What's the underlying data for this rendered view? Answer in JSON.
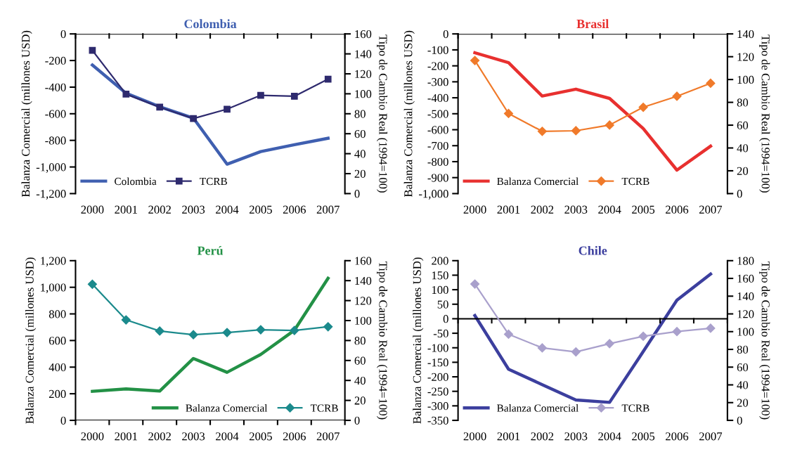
{
  "chart_data": [
    {
      "type": "line",
      "title": "Colombia",
      "categories": [
        "2000",
        "2001",
        "2002",
        "2003",
        "2004",
        "2005",
        "2006",
        "2007"
      ],
      "ylabel": "Balanza Comercial (millones USD)",
      "y2label": "Tipo de Cambio Real (1994=100)",
      "ylim": [
        -1200,
        0
      ],
      "yticks": [
        {
          "value": -1200,
          "label": "-1,200"
        },
        {
          "value": -1000,
          "label": "-1,000"
        },
        -800,
        -600,
        -400,
        -200,
        0
      ],
      "y2lim": [
        0,
        160
      ],
      "y2ticks": [
        0,
        20,
        40,
        60,
        80,
        100,
        120,
        140,
        160
      ],
      "legend": "bottom left",
      "grid": false,
      "series": [
        {
          "name": "Colombia",
          "color": "#3f5fb0",
          "marker": "none",
          "values": [
            -234,
            -446,
            -547,
            -633,
            -979,
            -884,
            -833,
            -784
          ]
        },
        {
          "name": "TCRB",
          "color": "#2e2a6e",
          "marker": "square",
          "axis": "y2",
          "values": [
            143.5,
            99.7,
            86.6,
            75.2,
            84.6,
            98.5,
            97.5,
            114.7
          ]
        }
      ]
    },
    {
      "type": "line",
      "title": "Brasil",
      "categories": [
        "2000",
        "2001",
        "2002",
        "2003",
        "2004",
        "2005",
        "2006",
        "2007"
      ],
      "ylabel": "Balanza Comercial (millones USD)",
      "y2label": "Tipo de Cambio Real (1994=100)",
      "ylim": [
        -1000,
        0
      ],
      "yticks": [
        {
          "value": -1000,
          "label": "-1,000"
        },
        -900,
        -800,
        -700,
        -600,
        -500,
        -400,
        -300,
        -200,
        -100,
        0
      ],
      "y2lim": [
        0,
        140
      ],
      "y2ticks": [
        0,
        20,
        40,
        60,
        80,
        100,
        120,
        140
      ],
      "legend": "bottom left",
      "grid": false,
      "series": [
        {
          "name": "Balanza Comercial",
          "color": "#e8302f",
          "marker": "none",
          "values": [
            -118,
            -180,
            -389,
            -346,
            -404,
            -593,
            -853,
            -703
          ]
        },
        {
          "name": "TCRB",
          "color": "#f07a2a",
          "marker": "diamond",
          "axis": "y2",
          "values": [
            116.7,
            70.2,
            54.6,
            55.1,
            60.1,
            75.7,
            85.3,
            96.7
          ]
        }
      ]
    },
    {
      "type": "line",
      "title": "Perú",
      "categories": [
        "2000",
        "2001",
        "2002",
        "2003",
        "2004",
        "2005",
        "2006",
        "2007"
      ],
      "ylabel": "Balanza Comercial (millones USD)",
      "y2label": "Tipo de Cambio Real (1994=100)",
      "ylim": [
        0,
        1200
      ],
      "yticks": [
        0,
        200,
        400,
        600,
        800,
        {
          "value": 1000,
          "label": "1,000"
        },
        {
          "value": 1200,
          "label": "1,200"
        }
      ],
      "y2lim": [
        0,
        160
      ],
      "y2ticks": [
        0,
        20,
        40,
        60,
        80,
        100,
        120,
        140,
        160
      ],
      "legend": "bottom right",
      "grid": false,
      "series": [
        {
          "name": "Balanza Comercial",
          "color": "#239146",
          "marker": "none",
          "values": [
            218,
            236,
            220,
            465,
            361,
            495,
            677,
            1068
          ]
        },
        {
          "name": "TCRB",
          "color": "#1b8a8c",
          "marker": "diamond",
          "axis": "y2",
          "values": [
            136.4,
            100.7,
            89.5,
            85.8,
            88.0,
            90.8,
            90.1,
            93.8
          ]
        }
      ]
    },
    {
      "type": "line",
      "title": "Chile",
      "categories": [
        "2000",
        "2001",
        "2002",
        "2003",
        "2004",
        "2005",
        "2006",
        "2007"
      ],
      "ylabel": "Balanza Comercial (millones USD)",
      "y2label": "Tipo de Cambio Real (1994=100)",
      "ylim": [
        -350,
        200
      ],
      "yticks": [
        -350,
        -300,
        -250,
        -200,
        -150,
        -100,
        -50,
        0,
        50,
        100,
        150,
        200
      ],
      "y2lim": [
        0,
        180
      ],
      "y2ticks": [
        0,
        20,
        40,
        60,
        80,
        100,
        120,
        140,
        160,
        180
      ],
      "legend": "bottom left",
      "grid": false,
      "ref_lines": [
        {
          "axis": "y",
          "value": 0,
          "color": "#000000"
        }
      ],
      "series": [
        {
          "name": "Balanza Comercial",
          "color": "#3c3f9e",
          "marker": "none",
          "values": [
            11,
            -174,
            -227,
            -280,
            -288,
            -113,
            64,
            154
          ]
        },
        {
          "name": "TCRB",
          "color": "#a9a0cc",
          "marker": "diamond",
          "axis": "y2",
          "values": [
            153.7,
            97.1,
            81.7,
            77.2,
            86.5,
            94.8,
            100.1,
            103.8
          ]
        }
      ]
    }
  ]
}
